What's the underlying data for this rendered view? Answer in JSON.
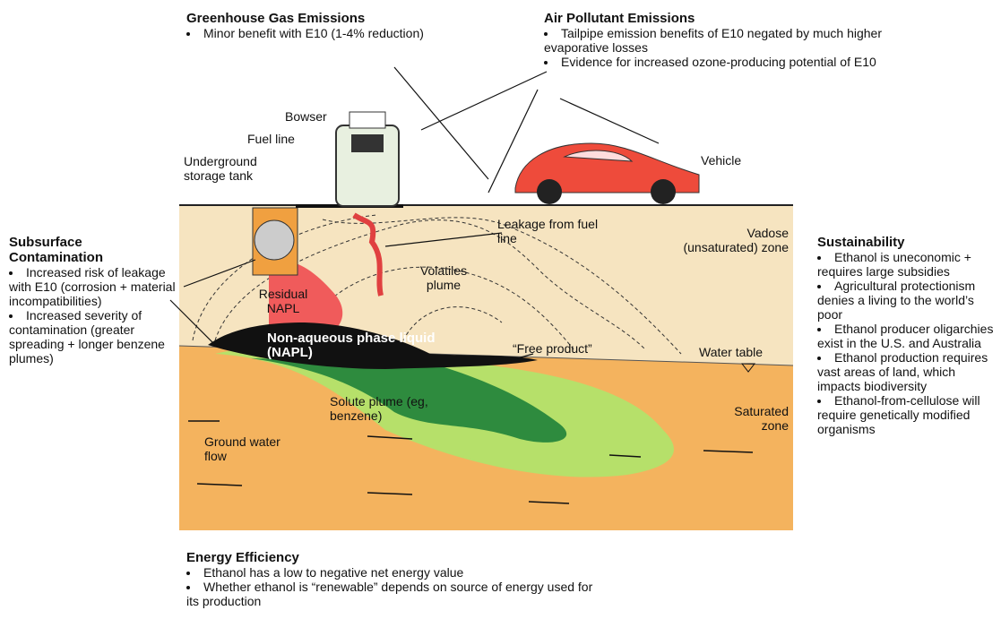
{
  "greenhouse": {
    "title": "Greenhouse Gas Emissions",
    "bullets": [
      "Minor benefit with E10 (1-4% reduction)"
    ]
  },
  "air": {
    "title": "Air Pollutant Emissions",
    "bullets": [
      "Tailpipe emission benefits of E10 negated by much higher evaporative losses",
      "Evidence for increased ozone-producing potential of E10"
    ]
  },
  "subsurface": {
    "title": "Subsurface Contamination",
    "bullets": [
      "Increased risk of leakage with E10 (corrosion + material incompatibilities)",
      "Increased severity of contamination (greater spreading + longer benzene plumes)"
    ]
  },
  "sustainability": {
    "title": "Sustainability",
    "bullets": [
      "Ethanol is uneconomic + requires large subsidies",
      "Agricultural protectionism denies a living to the world’s poor",
      "Ethanol producer oligarchies exist in the U.S. and Australia",
      "Ethanol production requires vast areas of land, which impacts biodiversity",
      "Ethanol-from-cellulose will require genetically modified organisms"
    ]
  },
  "energy": {
    "title": "Energy Efficiency",
    "bullets": [
      "Ethanol has a low to negative net energy value",
      "Whether ethanol is “renewable” depends on source of energy used for its production"
    ]
  },
  "labels": {
    "bowser": "Bowser",
    "fuel_line": "Fuel line",
    "tank": "Underground storage tank",
    "vehicle": "Vehicle",
    "leakage": "Leakage from fuel line",
    "vadose": "Vadose (unsaturated) zone",
    "volatiles": "Volatiles plume",
    "residual": "Residual NAPL",
    "napl": "Non-aqueous phase liquid (NAPL)",
    "free_product": "“Free product”",
    "water_table": "Water table",
    "solute": "Solute plume (eg, benzene)",
    "saturated": "Saturated zone",
    "flow": "Ground water flow"
  }
}
